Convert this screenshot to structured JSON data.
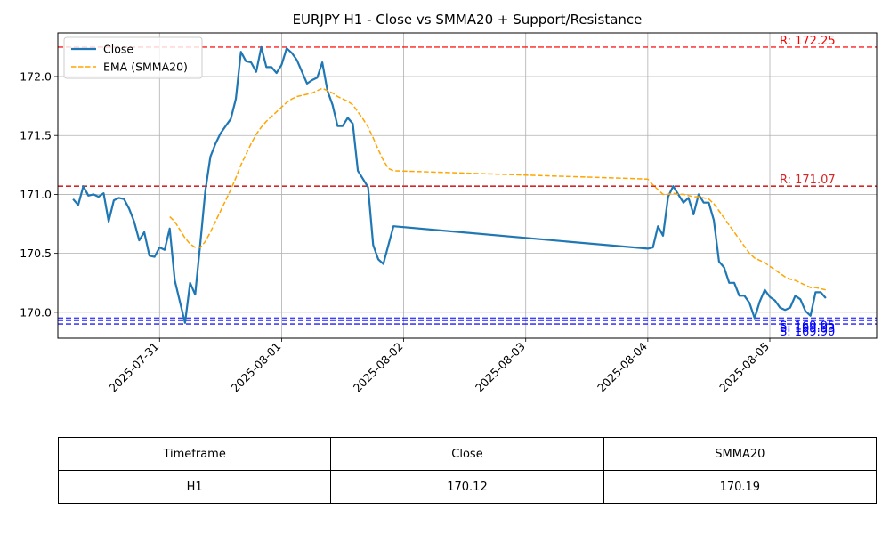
{
  "chart_data": {
    "type": "line",
    "title": "EURJPY H1 - Close vs SMMA20 + Support/Resistance",
    "xlabel": "",
    "ylabel": "",
    "x_ticks": [
      "2025-07-31",
      "2025-08-01",
      "2025-08-02",
      "2025-08-03",
      "2025-08-04",
      "2025-08-05"
    ],
    "y_ticks": [
      170.0,
      170.5,
      171.0,
      171.5,
      172.0
    ],
    "ylim": [
      169.78,
      172.37
    ],
    "xlim": [
      "2025-07-30 04:00",
      "2025-08-05 21:00"
    ],
    "grid": true,
    "legend_position": "top-left",
    "series": [
      {
        "name": "Close",
        "color": "#1f77b4",
        "style": "solid",
        "points": [
          [
            "2025-07-30 07:00",
            170.96
          ],
          [
            "2025-07-30 08:00",
            170.91
          ],
          [
            "2025-07-30 09:00",
            171.07
          ],
          [
            "2025-07-30 10:00",
            170.99
          ],
          [
            "2025-07-30 11:00",
            171.0
          ],
          [
            "2025-07-30 12:00",
            170.98
          ],
          [
            "2025-07-30 13:00",
            171.01
          ],
          [
            "2025-07-30 14:00",
            170.77
          ],
          [
            "2025-07-30 15:00",
            170.95
          ],
          [
            "2025-07-30 16:00",
            170.97
          ],
          [
            "2025-07-30 17:00",
            170.96
          ],
          [
            "2025-07-30 18:00",
            170.88
          ],
          [
            "2025-07-30 19:00",
            170.77
          ],
          [
            "2025-07-30 20:00",
            170.61
          ],
          [
            "2025-07-30 21:00",
            170.68
          ],
          [
            "2025-07-30 22:00",
            170.48
          ],
          [
            "2025-07-30 23:00",
            170.47
          ],
          [
            "2025-07-31 00:00",
            170.55
          ],
          [
            "2025-07-31 01:00",
            170.53
          ],
          [
            "2025-07-31 02:00",
            170.71
          ],
          [
            "2025-07-31 03:00",
            170.27
          ],
          [
            "2025-07-31 04:00",
            170.09
          ],
          [
            "2025-07-31 05:00",
            169.91
          ],
          [
            "2025-07-31 06:00",
            170.25
          ],
          [
            "2025-07-31 07:00",
            170.15
          ],
          [
            "2025-07-31 08:00",
            170.58
          ],
          [
            "2025-07-31 09:00",
            171.03
          ],
          [
            "2025-07-31 10:00",
            171.32
          ],
          [
            "2025-07-31 11:00",
            171.43
          ],
          [
            "2025-07-31 12:00",
            171.52
          ],
          [
            "2025-07-31 13:00",
            171.58
          ],
          [
            "2025-07-31 14:00",
            171.64
          ],
          [
            "2025-07-31 15:00",
            171.81
          ],
          [
            "2025-07-31 16:00",
            172.21
          ],
          [
            "2025-07-31 17:00",
            172.13
          ],
          [
            "2025-07-31 18:00",
            172.12
          ],
          [
            "2025-07-31 19:00",
            172.04
          ],
          [
            "2025-07-31 20:00",
            172.25
          ],
          [
            "2025-07-31 21:00",
            172.08
          ],
          [
            "2025-07-31 22:00",
            172.08
          ],
          [
            "2025-07-31 23:00",
            172.03
          ],
          [
            "2025-08-01 00:00",
            172.1
          ],
          [
            "2025-08-01 01:00",
            172.24
          ],
          [
            "2025-08-01 02:00",
            172.2
          ],
          [
            "2025-08-01 03:00",
            172.14
          ],
          [
            "2025-08-01 04:00",
            172.04
          ],
          [
            "2025-08-01 05:00",
            171.94
          ],
          [
            "2025-08-01 06:00",
            171.97
          ],
          [
            "2025-08-01 07:00",
            171.99
          ],
          [
            "2025-08-01 08:00",
            172.12
          ],
          [
            "2025-08-01 09:00",
            171.88
          ],
          [
            "2025-08-01 10:00",
            171.76
          ],
          [
            "2025-08-01 11:00",
            171.58
          ],
          [
            "2025-08-01 12:00",
            171.58
          ],
          [
            "2025-08-01 13:00",
            171.65
          ],
          [
            "2025-08-01 14:00",
            171.6
          ],
          [
            "2025-08-01 15:00",
            171.2
          ],
          [
            "2025-08-01 16:00",
            171.13
          ],
          [
            "2025-08-01 17:00",
            171.06
          ],
          [
            "2025-08-01 18:00",
            170.57
          ],
          [
            "2025-08-01 19:00",
            170.45
          ],
          [
            "2025-08-01 20:00",
            170.41
          ],
          [
            "2025-08-01 21:00",
            170.57
          ],
          [
            "2025-08-01 22:00",
            170.73
          ],
          [
            "2025-08-04 00:00",
            170.54
          ],
          [
            "2025-08-04 01:00",
            170.55
          ],
          [
            "2025-08-04 02:00",
            170.73
          ],
          [
            "2025-08-04 03:00",
            170.65
          ],
          [
            "2025-08-04 04:00",
            170.98
          ],
          [
            "2025-08-04 05:00",
            171.07
          ],
          [
            "2025-08-04 06:00",
            171.0
          ],
          [
            "2025-08-04 07:00",
            170.93
          ],
          [
            "2025-08-04 08:00",
            170.97
          ],
          [
            "2025-08-04 09:00",
            170.83
          ],
          [
            "2025-08-04 10:00",
            171.0
          ],
          [
            "2025-08-04 11:00",
            170.93
          ],
          [
            "2025-08-04 12:00",
            170.93
          ],
          [
            "2025-08-04 13:00",
            170.78
          ],
          [
            "2025-08-04 14:00",
            170.43
          ],
          [
            "2025-08-04 15:00",
            170.38
          ],
          [
            "2025-08-04 16:00",
            170.25
          ],
          [
            "2025-08-04 17:00",
            170.25
          ],
          [
            "2025-08-04 18:00",
            170.14
          ],
          [
            "2025-08-04 19:00",
            170.14
          ],
          [
            "2025-08-04 20:00",
            170.08
          ],
          [
            "2025-08-04 21:00",
            169.95
          ],
          [
            "2025-08-04 22:00",
            170.09
          ],
          [
            "2025-08-04 23:00",
            170.19
          ],
          [
            "2025-08-05 00:00",
            170.13
          ],
          [
            "2025-08-05 01:00",
            170.1
          ],
          [
            "2025-08-05 02:00",
            170.04
          ],
          [
            "2025-08-05 03:00",
            170.02
          ],
          [
            "2025-08-05 04:00",
            170.04
          ],
          [
            "2025-08-05 05:00",
            170.14
          ],
          [
            "2025-08-05 06:00",
            170.11
          ],
          [
            "2025-08-05 07:00",
            170.01
          ],
          [
            "2025-08-05 08:00",
            169.97
          ],
          [
            "2025-08-05 09:00",
            170.17
          ],
          [
            "2025-08-05 10:00",
            170.17
          ],
          [
            "2025-08-05 11:00",
            170.12
          ]
        ]
      },
      {
        "name": "EMA (SMMA20)",
        "color": "#ffa500",
        "style": "dashed",
        "points": [
          [
            "2025-07-31 02:00",
            170.81
          ],
          [
            "2025-07-31 03:00",
            170.77
          ],
          [
            "2025-07-31 04:00",
            170.7
          ],
          [
            "2025-07-31 05:00",
            170.63
          ],
          [
            "2025-07-31 06:00",
            170.58
          ],
          [
            "2025-07-31 07:00",
            170.55
          ],
          [
            "2025-07-31 08:00",
            170.55
          ],
          [
            "2025-07-31 09:00",
            170.6
          ],
          [
            "2025-07-31 10:00",
            170.68
          ],
          [
            "2025-07-31 11:00",
            170.77
          ],
          [
            "2025-07-31 12:00",
            170.86
          ],
          [
            "2025-07-31 13:00",
            170.95
          ],
          [
            "2025-07-31 14:00",
            171.04
          ],
          [
            "2025-07-31 15:00",
            171.14
          ],
          [
            "2025-07-31 16:00",
            171.25
          ],
          [
            "2025-07-31 17:00",
            171.34
          ],
          [
            "2025-07-31 18:00",
            171.43
          ],
          [
            "2025-07-31 19:00",
            171.51
          ],
          [
            "2025-07-31 20:00",
            171.57
          ],
          [
            "2025-07-31 21:00",
            171.62
          ],
          [
            "2025-07-31 22:00",
            171.66
          ],
          [
            "2025-07-31 23:00",
            171.7
          ],
          [
            "2025-08-01 00:00",
            171.74
          ],
          [
            "2025-08-01 01:00",
            171.78
          ],
          [
            "2025-08-01 02:00",
            171.81
          ],
          [
            "2025-08-01 03:00",
            171.83
          ],
          [
            "2025-08-01 04:00",
            171.84
          ],
          [
            "2025-08-01 05:00",
            171.85
          ],
          [
            "2025-08-01 06:00",
            171.86
          ],
          [
            "2025-08-01 07:00",
            171.88
          ],
          [
            "2025-08-01 08:00",
            171.9
          ],
          [
            "2025-08-01 09:00",
            171.88
          ],
          [
            "2025-08-01 10:00",
            171.86
          ],
          [
            "2025-08-01 11:00",
            171.83
          ],
          [
            "2025-08-01 12:00",
            171.81
          ],
          [
            "2025-08-01 13:00",
            171.79
          ],
          [
            "2025-08-01 14:00",
            171.76
          ],
          [
            "2025-08-01 15:00",
            171.7
          ],
          [
            "2025-08-01 16:00",
            171.64
          ],
          [
            "2025-08-01 17:00",
            171.57
          ],
          [
            "2025-08-01 18:00",
            171.48
          ],
          [
            "2025-08-01 19:00",
            171.38
          ],
          [
            "2025-08-01 20:00",
            171.29
          ],
          [
            "2025-08-01 21:00",
            171.22
          ],
          [
            "2025-08-01 22:00",
            171.2
          ],
          [
            "2025-08-04 00:00",
            171.13
          ],
          [
            "2025-08-04 01:00",
            171.08
          ],
          [
            "2025-08-04 02:00",
            171.04
          ],
          [
            "2025-08-04 03:00",
            171.0
          ],
          [
            "2025-08-04 04:00",
            171.0
          ],
          [
            "2025-08-04 05:00",
            171.01
          ],
          [
            "2025-08-04 06:00",
            171.0
          ],
          [
            "2025-08-04 07:00",
            171.0
          ],
          [
            "2025-08-04 08:00",
            170.99
          ],
          [
            "2025-08-04 09:00",
            170.98
          ],
          [
            "2025-08-04 10:00",
            170.98
          ],
          [
            "2025-08-04 11:00",
            170.97
          ],
          [
            "2025-08-04 12:00",
            170.96
          ],
          [
            "2025-08-04 13:00",
            170.92
          ],
          [
            "2025-08-04 14:00",
            170.86
          ],
          [
            "2025-08-04 15:00",
            170.8
          ],
          [
            "2025-08-04 16:00",
            170.74
          ],
          [
            "2025-08-04 17:00",
            170.68
          ],
          [
            "2025-08-04 18:00",
            170.62
          ],
          [
            "2025-08-04 19:00",
            170.56
          ],
          [
            "2025-08-04 20:00",
            170.5
          ],
          [
            "2025-08-04 21:00",
            170.46
          ],
          [
            "2025-08-04 22:00",
            170.44
          ],
          [
            "2025-08-04 23:00",
            170.42
          ],
          [
            "2025-08-05 00:00",
            170.39
          ],
          [
            "2025-08-05 01:00",
            170.36
          ],
          [
            "2025-08-05 02:00",
            170.33
          ],
          [
            "2025-08-05 03:00",
            170.3
          ],
          [
            "2025-08-05 04:00",
            170.28
          ],
          [
            "2025-08-05 05:00",
            170.27
          ],
          [
            "2025-08-05 06:00",
            170.25
          ],
          [
            "2025-08-05 07:00",
            170.23
          ],
          [
            "2025-08-05 08:00",
            170.21
          ],
          [
            "2025-08-05 09:00",
            170.21
          ],
          [
            "2025-08-05 10:00",
            170.2
          ],
          [
            "2025-08-05 11:00",
            170.19
          ]
        ]
      }
    ],
    "levels": [
      {
        "kind": "resistance",
        "label": "R: 172.25",
        "value": 172.25,
        "color": "#ff0000",
        "opacity": 0.75
      },
      {
        "kind": "resistance",
        "label": "R: 171.07",
        "value": 171.07,
        "color": "#d62728",
        "opacity": 1.0
      },
      {
        "kind": "support",
        "label": "S: 169.95",
        "value": 169.95,
        "color": "#0000ff",
        "opacity": 0.75
      },
      {
        "kind": "support",
        "label": "S: 169.93",
        "value": 169.93,
        "color": "#0000ff",
        "opacity": 0.75
      },
      {
        "kind": "support",
        "label": "S: 169.90",
        "value": 169.9,
        "color": "#0000ff",
        "opacity": 0.75
      }
    ],
    "table": {
      "headers": [
        "Timeframe",
        "Close",
        "SMMA20"
      ],
      "rows": [
        [
          "H1",
          "170.12",
          "170.19"
        ]
      ]
    }
  }
}
